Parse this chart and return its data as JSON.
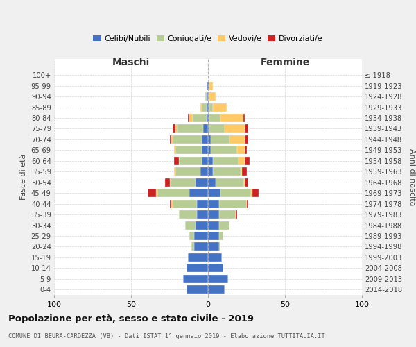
{
  "age_groups": [
    "0-4",
    "5-9",
    "10-14",
    "15-19",
    "20-24",
    "25-29",
    "30-34",
    "35-39",
    "40-44",
    "45-49",
    "50-54",
    "55-59",
    "60-64",
    "65-69",
    "70-74",
    "75-79",
    "80-84",
    "85-89",
    "90-94",
    "95-99",
    "100+"
  ],
  "birth_years": [
    "2014-2018",
    "2009-2013",
    "2004-2008",
    "1999-2003",
    "1994-1998",
    "1989-1993",
    "1984-1988",
    "1979-1983",
    "1974-1978",
    "1969-1973",
    "1964-1968",
    "1959-1963",
    "1954-1958",
    "1949-1953",
    "1944-1948",
    "1939-1943",
    "1934-1938",
    "1929-1933",
    "1924-1928",
    "1919-1923",
    "≤ 1918"
  ],
  "males": {
    "celibi": [
      14,
      16,
      14,
      13,
      9,
      9,
      8,
      7,
      7,
      12,
      8,
      5,
      4,
      4,
      4,
      3,
      1,
      1,
      1,
      1,
      0
    ],
    "coniugati": [
      0,
      0,
      0,
      0,
      2,
      3,
      7,
      12,
      16,
      21,
      17,
      16,
      15,
      17,
      19,
      17,
      9,
      3,
      1,
      0,
      0
    ],
    "vedovi": [
      0,
      0,
      0,
      0,
      0,
      0,
      0,
      0,
      1,
      1,
      0,
      1,
      0,
      1,
      1,
      1,
      2,
      1,
      0,
      0,
      0
    ],
    "divorziati": [
      0,
      0,
      0,
      0,
      0,
      0,
      0,
      0,
      1,
      5,
      3,
      0,
      3,
      0,
      1,
      2,
      1,
      0,
      0,
      0,
      0
    ]
  },
  "females": {
    "nubili": [
      11,
      13,
      10,
      9,
      7,
      7,
      7,
      7,
      7,
      8,
      5,
      3,
      3,
      2,
      2,
      1,
      1,
      1,
      0,
      1,
      0
    ],
    "coniugate": [
      0,
      0,
      0,
      0,
      1,
      3,
      7,
      11,
      18,
      20,
      18,
      18,
      17,
      17,
      12,
      10,
      7,
      2,
      1,
      0,
      0
    ],
    "vedove": [
      0,
      0,
      0,
      0,
      0,
      0,
      0,
      0,
      0,
      1,
      1,
      1,
      4,
      5,
      10,
      13,
      15,
      9,
      4,
      2,
      0
    ],
    "divorziate": [
      0,
      0,
      0,
      0,
      0,
      0,
      0,
      1,
      1,
      4,
      2,
      3,
      3,
      1,
      2,
      2,
      1,
      0,
      0,
      0,
      0
    ]
  },
  "colors": {
    "celibi": "#4472c4",
    "coniugati": "#b8cc96",
    "vedovi": "#ffc966",
    "divorziati": "#cc2222"
  },
  "xlim": 100,
  "title": "Popolazione per età, sesso e stato civile - 2019",
  "subtitle": "COMUNE DI BEURA-CARDEZZA (VB) - Dati ISTAT 1° gennaio 2019 - Elaborazione TUTTITALIA.IT",
  "xlabel_left": "Maschi",
  "xlabel_right": "Femmine",
  "ylabel_left": "Fasce di età",
  "ylabel_right": "Anni di nascita",
  "bg_color": "#f0f0f0",
  "plot_bg": "#ffffff"
}
